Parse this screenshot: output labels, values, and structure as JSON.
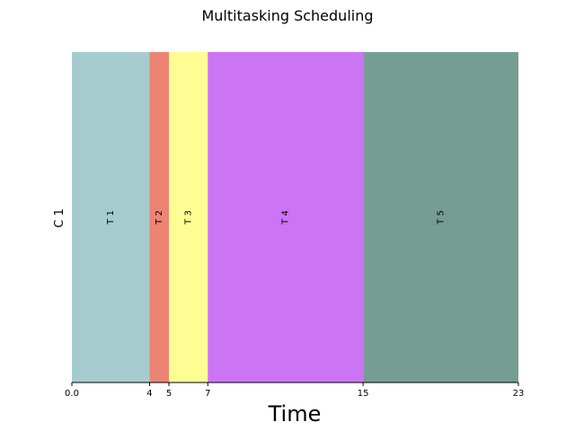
{
  "chart_data": {
    "type": "bar",
    "title": "Multitasking Scheduling",
    "xlabel": "Time",
    "ylabel": "C 1",
    "xlim": [
      0,
      23
    ],
    "x_ticks": [
      "0.0",
      "4",
      "5",
      "7",
      "15",
      "23"
    ],
    "x_tick_values": [
      0,
      4,
      5,
      7,
      15,
      23
    ],
    "grid": false,
    "tasks": [
      {
        "name": "T 1",
        "start": 0,
        "end": 4,
        "color": "#a6cbcf"
      },
      {
        "name": "T 2",
        "start": 4,
        "end": 5,
        "color": "#ec8474"
      },
      {
        "name": "T 3",
        "start": 5,
        "end": 7,
        "color": "#fdfd94"
      },
      {
        "name": "T 4",
        "start": 7,
        "end": 15,
        "color": "#cb74f4"
      },
      {
        "name": "T 5",
        "start": 15,
        "end": 23,
        "color": "#769d94"
      }
    ]
  }
}
